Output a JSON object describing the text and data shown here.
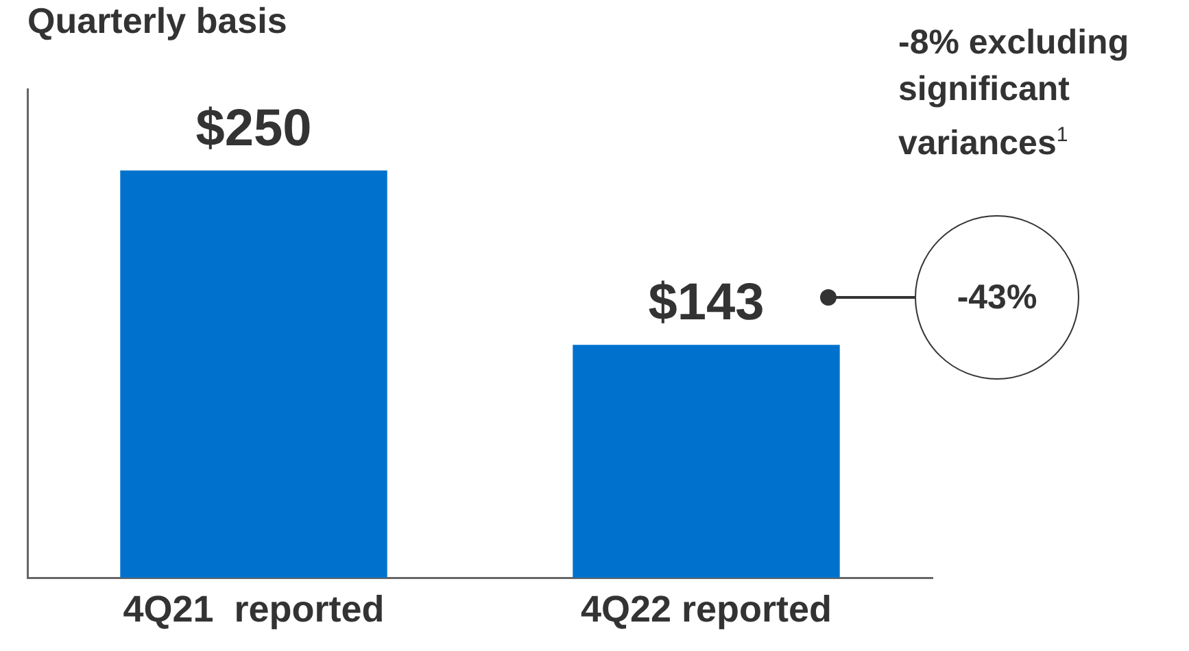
{
  "chart_data": {
    "type": "bar",
    "title": "Quarterly basis",
    "categories": [
      "4Q21  reported",
      "4Q22 reported"
    ],
    "values": [
      250,
      143
    ],
    "color": "#0072ce",
    "value_labels": [
      "$250",
      "$143"
    ],
    "ylim": [
      0,
      300
    ],
    "tick_labels": "x",
    "grid": false,
    "annotations": [
      "-8% excluding significant variances$^{1}$",
      "-43%"
    ]
  }
}
